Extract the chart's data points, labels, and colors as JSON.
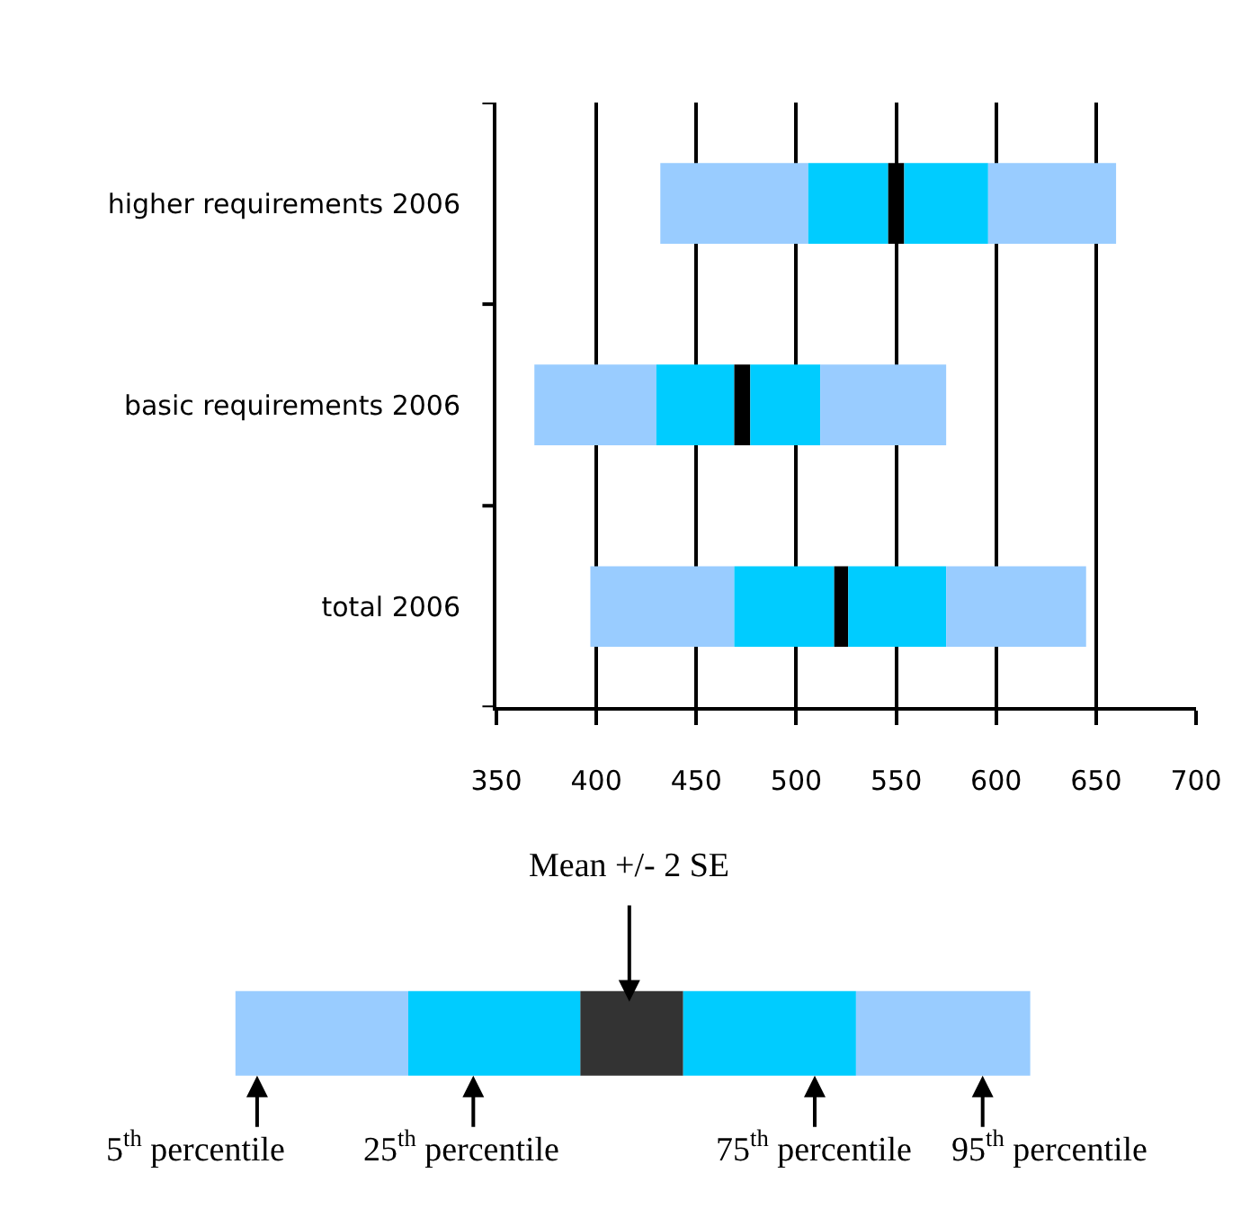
{
  "chart_data": {
    "type": "bar",
    "orientation": "horizontal",
    "categories": [
      "higher requirements 2006",
      "basic requirements 2006",
      "total 2006"
    ],
    "series": [
      {
        "color": "#99ccff",
        "base": [
          432,
          369,
          397
        ],
        "values": [
          74,
          61,
          72
        ]
      },
      {
        "color": "#00ccff",
        "base": [
          506,
          430,
          469
        ],
        "values": [
          40,
          39,
          50
        ]
      },
      {
        "color": "#000000",
        "base": [
          546,
          469,
          519
        ],
        "values": [
          8,
          8,
          7
        ]
      },
      {
        "color": "#00ccff",
        "base": [
          554,
          477,
          526
        ],
        "values": [
          42,
          35,
          49
        ]
      },
      {
        "color": "#99ccff",
        "base": [
          596,
          512,
          575
        ],
        "values": [
          64,
          63,
          70
        ]
      }
    ],
    "xlim": [
      350,
      700
    ],
    "xticks": [
      350,
      400,
      450,
      500,
      550,
      600,
      650,
      700
    ],
    "grid": "x",
    "annotations": [
      "Mean +/- 2 SE",
      "5$^{th}$ percentile",
      "25$^{th}$ percentile",
      "75$^{th}$ percentile",
      "95$^{th}$ percentile"
    ]
  }
}
